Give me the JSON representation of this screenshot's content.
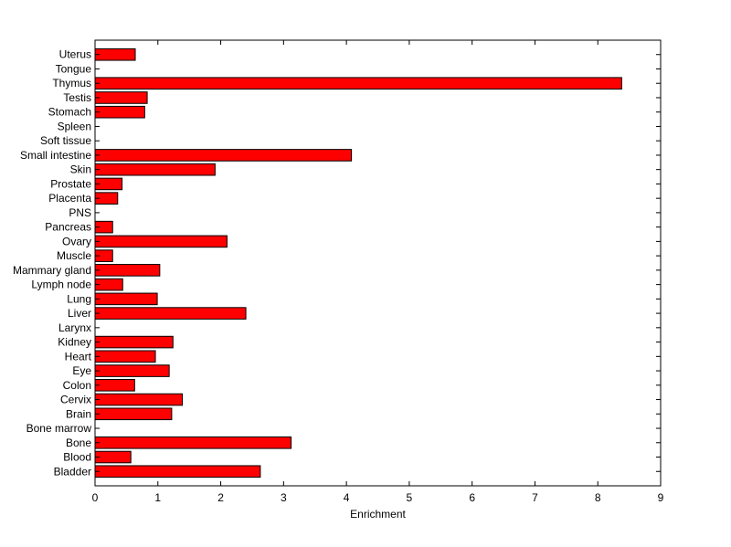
{
  "chart_data": {
    "type": "bar",
    "orientation": "horizontal",
    "title": "",
    "xlabel": "Enrichment",
    "ylabel": "",
    "xlim": [
      0,
      9
    ],
    "xticks": [
      0,
      1,
      2,
      3,
      4,
      5,
      6,
      7,
      8,
      9
    ],
    "grid": false,
    "bar_color": "#ff0000",
    "categories": [
      "Bladder",
      "Blood",
      "Bone",
      "Bone marrow",
      "Brain",
      "Cervix",
      "Colon",
      "Eye",
      "Heart",
      "Kidney",
      "Larynx",
      "Liver",
      "Lung",
      "Lymph node",
      "Mammary gland",
      "Muscle",
      "Ovary",
      "Pancreas",
      "PNS",
      "Placenta",
      "Prostate",
      "Skin",
      "Small intestine",
      "Soft tissue",
      "Spleen",
      "Stomach",
      "Testis",
      "Thymus",
      "Tongue",
      "Uterus"
    ],
    "values": [
      2.63,
      0.57,
      3.12,
      0,
      1.22,
      1.39,
      0.63,
      1.18,
      0.96,
      1.24,
      0,
      2.4,
      0.99,
      0.44,
      1.03,
      0.28,
      2.1,
      0.28,
      0,
      0.36,
      0.43,
      1.91,
      4.08,
      0,
      0,
      0.79,
      0.83,
      8.38,
      0,
      0.64
    ]
  }
}
